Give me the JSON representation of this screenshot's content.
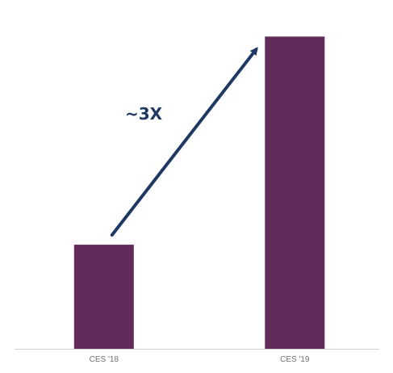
{
  "chart_data": {
    "type": "bar",
    "categories": [
      "CES '18",
      "CES '19"
    ],
    "values": [
      1,
      3
    ],
    "ylim": [
      0,
      3.15
    ],
    "grid": false,
    "legend": "none",
    "annotation": {
      "text": "~3X",
      "kind": "arrow",
      "from_category": "CES '18",
      "to_category": "CES '19"
    }
  },
  "colors": {
    "bar": "#612a58",
    "arrow": "#1f3864",
    "axis": "#d0d0d0",
    "tick_text": "#6f6f6f"
  }
}
